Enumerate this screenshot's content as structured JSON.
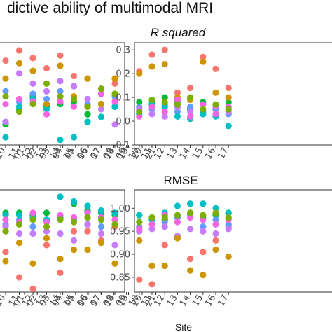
{
  "figure": {
    "title": "dictive ability of multimodal MRI",
    "xlabel": "Site"
  },
  "colors": [
    "#f8766d",
    "#00ba38",
    "#619cff",
    "#c77cff",
    "#00bfc4",
    "#cd9600",
    "#f564e3",
    "#7cae00"
  ],
  "chart_data": [
    {
      "type": "scatter",
      "title": "",
      "sites": [
        "10",
        "11",
        "12",
        "13",
        "14",
        "15",
        "16",
        "17",
        "18",
        "19",
        "20",
        "21"
      ],
      "yticks": [],
      "ylim": [
        -0.06,
        0.34
      ],
      "series_values": [
        [
          0.27,
          0.31,
          0.28,
          0.24,
          0.29,
          0.21,
          0.2,
          0.16,
          0.18,
          0.21,
          0.27,
          0.27
        ],
        [
          0.02,
          0.08,
          0.13,
          0.09,
          0.1,
          0.11,
          0.06,
          0.1,
          0.09,
          0.07,
          0.13,
          0.13
        ],
        [
          0.15,
          0.11,
          0.14,
          0.12,
          0.15,
          0.17,
          0.1,
          0.16,
          0.13,
          0.12,
          0.17,
          0.11
        ],
        [
          0.03,
          0.22,
          0.18,
          0.15,
          0.19,
          0.17,
          0.12,
          0.08,
          0.02,
          0.12,
          0.15,
          0.12
        ],
        [
          -0.03,
          0.09,
          0.12,
          0.08,
          -0.04,
          -0.03,
          0.03,
          0.05,
          0.09,
          0.04,
          0.07,
          0.09
        ],
        [
          0.2,
          0.26,
          0.23,
          0.1,
          0.25,
          0.13,
          0.2,
          0.1,
          0.2,
          0.24,
          0.23,
          0.17
        ],
        [
          0.1,
          0.12,
          0.11,
          0.06,
          0.11,
          0.09,
          0.09,
          0.14,
          0.11,
          0.08,
          0.05,
          0.05
        ],
        [
          0.13,
          0.07,
          0.1,
          0.18,
          0.13,
          0.12,
          0.09,
          0.16,
          0.14,
          0.1,
          0.12,
          0.1
        ]
      ]
    },
    {
      "type": "scatter",
      "title": "R squared",
      "sites": [
        "01",
        "02",
        "03",
        "04",
        "05",
        "06",
        "07",
        "08",
        "09",
        "10",
        "11",
        "12",
        "13",
        "14",
        "15",
        "16",
        "17"
      ],
      "yticks": [
        "-0.1",
        "0.0",
        "0.1",
        "0.2",
        "0.3"
      ],
      "ylim": [
        -0.1,
        0.33
      ],
      "series_values": [
        [
          0.07,
          0.22,
          0.17,
          0.12,
          0.11,
          0.14,
          0.18,
          0.19,
          0.09,
          0.21,
          0.28,
          0.3,
          0.12,
          0.14,
          0.27,
          0.22,
          0.14
        ],
        [
          0.13,
          0.12,
          0.07,
          0.11,
          0.03,
          0.1,
          0.06,
          0.07,
          0.08,
          0.08,
          0.07,
          0.1,
          0.08,
          0.05,
          0.08,
          0.05,
          0.08
        ],
        [
          0.04,
          0.05,
          0.06,
          0.04,
          0.06,
          0.04,
          0.03,
          0.04,
          0.05,
          0.06,
          0.05,
          0.07,
          0.04,
          0.06,
          0.04,
          0.05,
          0.03
        ],
        [
          0.05,
          0.04,
          0.03,
          0.03,
          0.08,
          0.04,
          0.05,
          0.04,
          0.04,
          0.05,
          0.03,
          0.02,
          0.06,
          0.04,
          0.03,
          0.06,
          0.04
        ],
        [
          0.03,
          0.02,
          0.01,
          0.02,
          -0.08,
          0.03,
          0.02,
          0.06,
          0.02,
          0.03,
          0.08,
          0.06,
          0.02,
          0.01,
          0.03,
          0.02,
          -0.02
        ],
        [
          0.31,
          0.06,
          0.08,
          0.05,
          0.14,
          0.18,
          0.1,
          0.21,
          0.09,
          0.2,
          0.23,
          0.24,
          0.1,
          0.09,
          0.25,
          0.12,
          0.1
        ],
        [
          0.06,
          0.03,
          0.04,
          0.1,
          0.07,
          0.05,
          0.08,
          0.03,
          0.08,
          0.02,
          0.06,
          0.04,
          0.09,
          0.02,
          0.07,
          0.03,
          0.06
        ],
        [
          0.09,
          0.1,
          0.05,
          0.06,
          0.05,
          0.07,
          0.09,
          0.08,
          0.07,
          0.04,
          0.09,
          0.08,
          0.07,
          0.1,
          0.05,
          0.07,
          0.05
        ]
      ]
    },
    {
      "type": "scatter",
      "title": "",
      "sites": [
        "10",
        "11",
        "12",
        "13",
        "14",
        "15",
        "16",
        "17",
        "18",
        "19",
        "20",
        "21"
      ],
      "yticks": [],
      "ylim": [
        0.818,
        1.04
      ],
      "series_values": [
        [
          0.905,
          0.85,
          0.825,
          0.92,
          0.86,
          0.95,
          0.95,
          0.93,
          0.96,
          0.94,
          0.94,
          0.93
        ],
        [
          0.99,
          0.99,
          0.985,
          0.99,
          0.98,
          1.01,
          0.995,
          0.99,
          0.985,
          0.985,
          0.98,
          0.99
        ],
        [
          0.965,
          0.975,
          0.96,
          0.975,
          0.985,
          0.975,
          0.965,
          0.96,
          0.975,
          0.98,
          0.96,
          0.975
        ],
        [
          0.96,
          0.945,
          0.945,
          0.95,
          0.945,
          0.93,
          0.965,
          0.945,
          0.92,
          0.95,
          0.945,
          0.965
        ],
        [
          0.985,
          0.985,
          0.98,
          0.975,
          1.025,
          1.015,
          1.005,
          0.995,
          0.99,
          0.985,
          0.975,
          0.985
        ],
        [
          0.885,
          0.925,
          0.88,
          0.935,
          0.89,
          0.91,
          0.91,
          0.925,
          0.88,
          0.88,
          0.87,
          0.875
        ],
        [
          0.975,
          0.97,
          0.99,
          0.97,
          0.985,
          0.98,
          0.99,
          0.98,
          0.975,
          0.97,
          0.985,
          0.97
        ],
        [
          0.95,
          0.965,
          0.975,
          0.96,
          0.975,
          0.97,
          0.98,
          0.975,
          0.965,
          0.975,
          0.97,
          0.96
        ]
      ]
    },
    {
      "type": "scatter",
      "title": "RMSE",
      "sites": [
        "01",
        "02",
        "03",
        "04",
        "05",
        "06",
        "07",
        "08",
        "09",
        "10",
        "11",
        "12",
        "13",
        "14",
        "15",
        "16",
        "17"
      ],
      "yticks": [
        "0.85",
        "0.90",
        "0.95",
        "1.00"
      ],
      "ylim": [
        0.818,
        1.04
      ],
      "series_values": [
        [
          0.88,
          0.9,
          0.96,
          0.945,
          0.86,
          0.95,
          0.935,
          0.92,
          0.96,
          0.845,
          0.835,
          0.92,
          0.98,
          0.89,
          0.905,
          0.93,
          0.96
        ],
        [
          0.99,
          0.995,
          0.99,
          0.985,
          0.995,
          0.985,
          0.99,
          0.985,
          0.99,
          0.985,
          0.98,
          0.975,
          0.985,
          0.99,
          0.98,
          0.985,
          0.99
        ],
        [
          0.96,
          0.975,
          0.975,
          0.965,
          0.98,
          0.975,
          0.97,
          0.975,
          0.975,
          0.96,
          0.975,
          0.97,
          0.98,
          0.985,
          0.96,
          0.975,
          0.965
        ],
        [
          0.945,
          0.955,
          0.95,
          0.945,
          0.94,
          0.955,
          0.96,
          0.945,
          0.96,
          0.95,
          0.955,
          0.96,
          0.94,
          0.955,
          0.95,
          0.945,
          0.955
        ],
        [
          0.975,
          0.985,
          0.995,
          0.99,
          1.0,
          0.985,
          0.985,
          0.99,
          0.99,
          0.985,
          0.975,
          0.99,
          1.005,
          1.01,
          1.01,
          1.0,
          0.99
        ],
        [
          0.825,
          0.905,
          0.9,
          0.92,
          0.935,
          0.915,
          0.92,
          0.905,
          0.905,
          0.93,
          0.875,
          0.875,
          0.935,
          0.865,
          0.855,
          0.91,
          0.895
        ],
        [
          0.97,
          0.965,
          0.98,
          0.96,
          0.975,
          0.965,
          0.975,
          0.97,
          0.98,
          0.955,
          0.965,
          0.985,
          0.97,
          0.98,
          0.975,
          0.965,
          0.975
        ],
        [
          0.98,
          0.97,
          0.985,
          0.975,
          0.99,
          0.98,
          0.985,
          0.98,
          0.975,
          0.97,
          0.98,
          0.98,
          0.985,
          0.99,
          0.985,
          0.99,
          0.98
        ]
      ]
    }
  ]
}
